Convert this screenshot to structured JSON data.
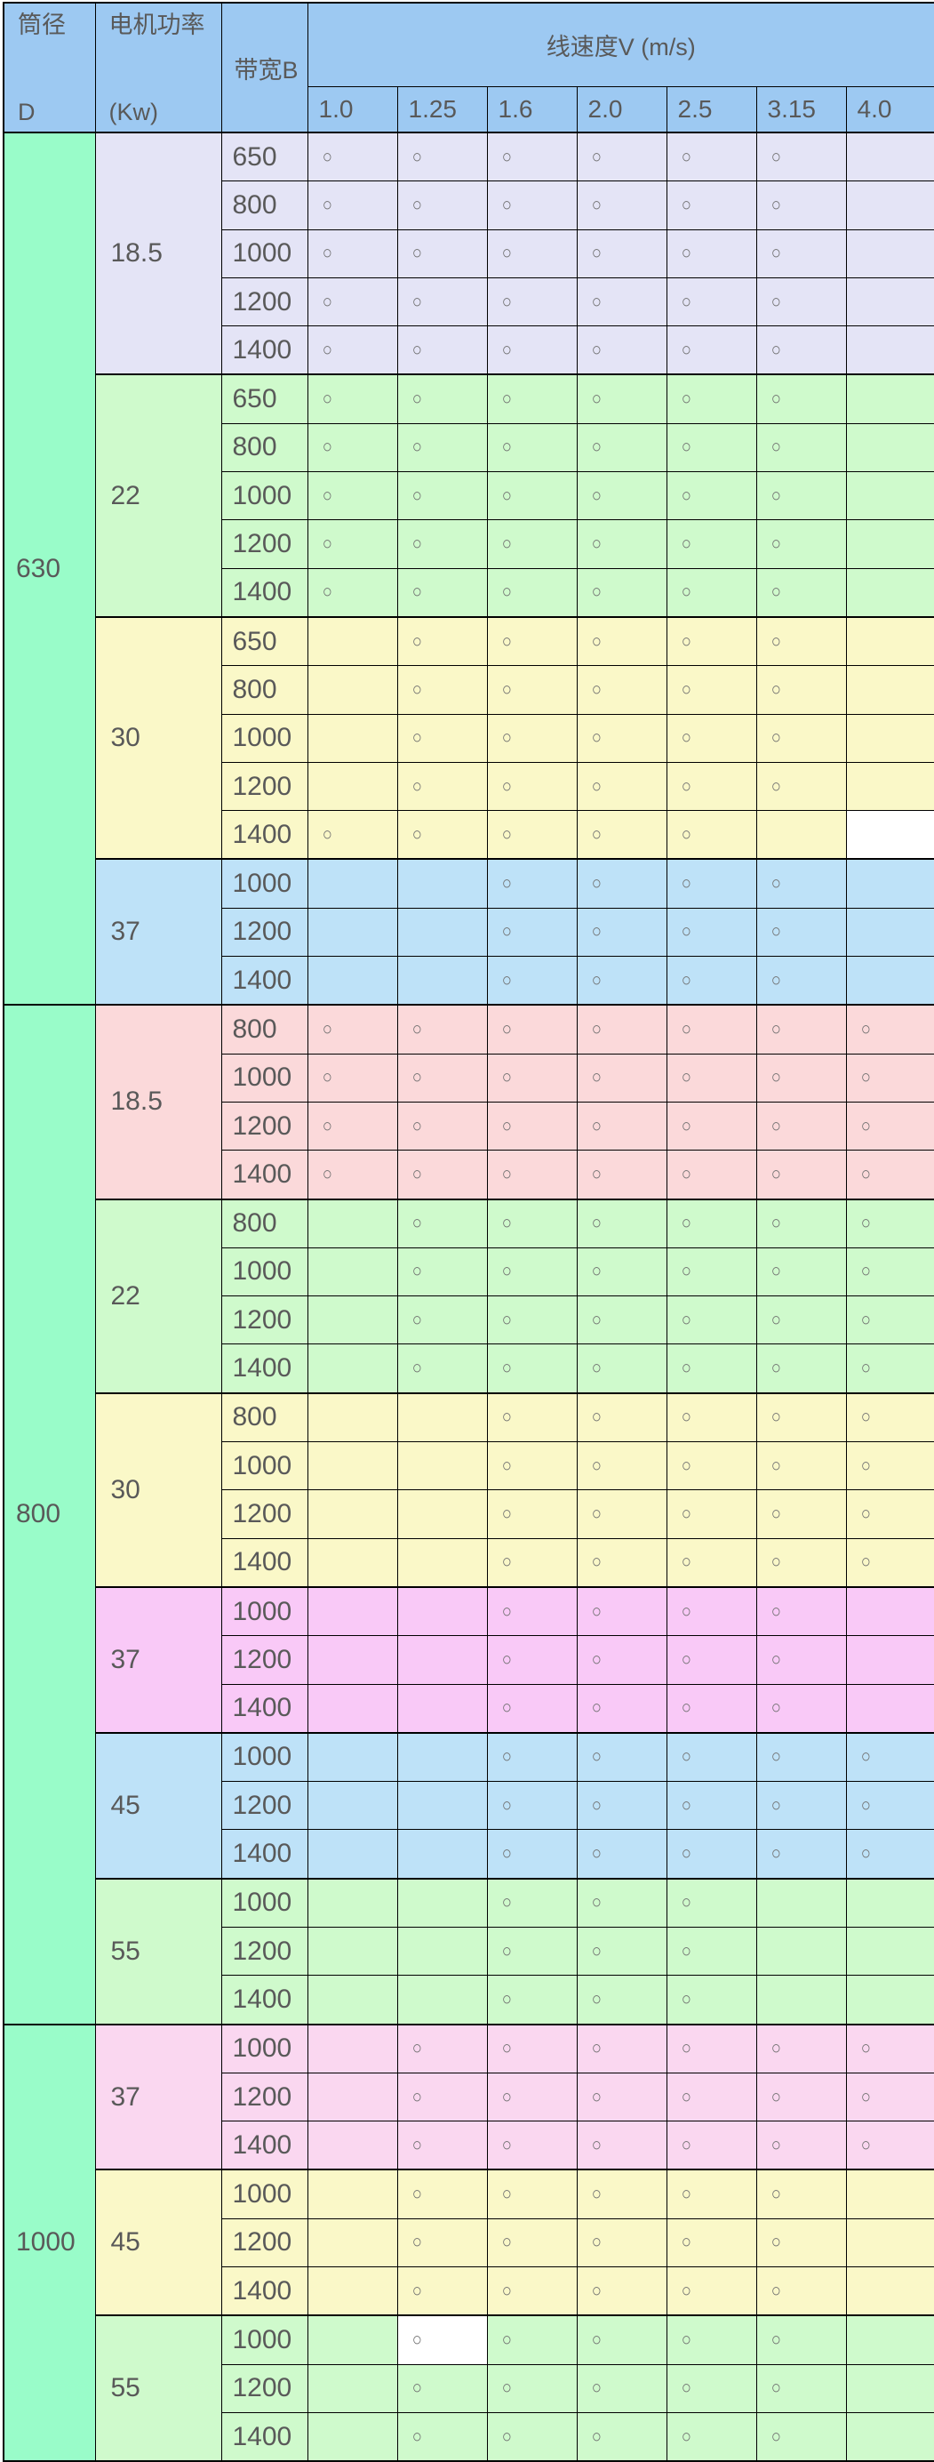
{
  "colors": {
    "header_blue": "#9DC9F2",
    "mint": "#99FCC9",
    "lavender": "#E4E4F6",
    "green": "#CFFACC",
    "yellow": "#FAF8C8",
    "blue": "#BEE2F8",
    "pink": "#FBD9DA",
    "magenta": "#F9C9F7",
    "pink2": "#FAD7F0",
    "white": "#FFFFFF",
    "border": "#000000",
    "text": "#595959"
  },
  "chart_data": {
    "type": "table",
    "header": {
      "diameter_label": "筒径",
      "diameter_sub": "D",
      "power_label": "电机功率",
      "power_sub": "(Kw)",
      "belt_width_label": "带宽B",
      "speed_title": "线速度V (m/s)",
      "speed_columns": [
        "1.0",
        "1.25",
        "1.6",
        "2.0",
        "2.5",
        "3.15",
        "4.0"
      ],
      "mark": "○"
    },
    "groups": [
      {
        "diameter": "630",
        "blocks": [
          {
            "power": "18.5",
            "theme": "lavender",
            "rows": [
              {
                "width": "650",
                "marks": [
                  1,
                  1,
                  1,
                  1,
                  1,
                  1,
                  0
                ]
              },
              {
                "width": "800",
                "marks": [
                  1,
                  1,
                  1,
                  1,
                  1,
                  1,
                  0
                ]
              },
              {
                "width": "1000",
                "marks": [
                  1,
                  1,
                  1,
                  1,
                  1,
                  1,
                  0
                ]
              },
              {
                "width": "1200",
                "marks": [
                  1,
                  1,
                  1,
                  1,
                  1,
                  1,
                  0
                ]
              },
              {
                "width": "1400",
                "marks": [
                  1,
                  1,
                  1,
                  1,
                  1,
                  1,
                  0
                ]
              }
            ]
          },
          {
            "power": "22",
            "theme": "green",
            "rows": [
              {
                "width": "650",
                "marks": [
                  1,
                  1,
                  1,
                  1,
                  1,
                  1,
                  0
                ]
              },
              {
                "width": "800",
                "marks": [
                  1,
                  1,
                  1,
                  1,
                  1,
                  1,
                  0
                ]
              },
              {
                "width": "1000",
                "marks": [
                  1,
                  1,
                  1,
                  1,
                  1,
                  1,
                  0
                ]
              },
              {
                "width": "1200",
                "marks": [
                  1,
                  1,
                  1,
                  1,
                  1,
                  1,
                  0
                ]
              },
              {
                "width": "1400",
                "marks": [
                  1,
                  1,
                  1,
                  1,
                  1,
                  1,
                  0
                ]
              }
            ]
          },
          {
            "power": "30",
            "theme": "yellow",
            "rows": [
              {
                "width": "650",
                "marks": [
                  0,
                  1,
                  1,
                  1,
                  1,
                  1,
                  0
                ]
              },
              {
                "width": "800",
                "marks": [
                  0,
                  1,
                  1,
                  1,
                  1,
                  1,
                  0
                ]
              },
              {
                "width": "1000",
                "marks": [
                  0,
                  1,
                  1,
                  1,
                  1,
                  1,
                  0
                ]
              },
              {
                "width": "1200",
                "marks": [
                  0,
                  1,
                  1,
                  1,
                  1,
                  1,
                  0
                ]
              },
              {
                "width": "1400",
                "marks": [
                  1,
                  1,
                  1,
                  1,
                  1,
                  0,
                  0
                ],
                "white_cells": [
                  6
                ]
              }
            ]
          },
          {
            "power": "37",
            "theme": "blue",
            "rows": [
              {
                "width": "1000",
                "marks": [
                  0,
                  0,
                  1,
                  1,
                  1,
                  1,
                  0
                ]
              },
              {
                "width": "1200",
                "marks": [
                  0,
                  0,
                  1,
                  1,
                  1,
                  1,
                  0
                ]
              },
              {
                "width": "1400",
                "marks": [
                  0,
                  0,
                  1,
                  1,
                  1,
                  1,
                  0
                ]
              }
            ]
          }
        ]
      },
      {
        "diameter": "800",
        "blocks": [
          {
            "power": "18.5",
            "theme": "pink",
            "rows": [
              {
                "width": "800",
                "marks": [
                  1,
                  1,
                  1,
                  1,
                  1,
                  1,
                  1
                ]
              },
              {
                "width": "1000",
                "marks": [
                  1,
                  1,
                  1,
                  1,
                  1,
                  1,
                  1
                ]
              },
              {
                "width": "1200",
                "marks": [
                  1,
                  1,
                  1,
                  1,
                  1,
                  1,
                  1
                ]
              },
              {
                "width": "1400",
                "marks": [
                  1,
                  1,
                  1,
                  1,
                  1,
                  1,
                  1
                ]
              }
            ]
          },
          {
            "power": "22",
            "theme": "green",
            "rows": [
              {
                "width": "800",
                "marks": [
                  0,
                  1,
                  1,
                  1,
                  1,
                  1,
                  1
                ]
              },
              {
                "width": "1000",
                "marks": [
                  0,
                  1,
                  1,
                  1,
                  1,
                  1,
                  1
                ]
              },
              {
                "width": "1200",
                "marks": [
                  0,
                  1,
                  1,
                  1,
                  1,
                  1,
                  1
                ]
              },
              {
                "width": "1400",
                "marks": [
                  0,
                  1,
                  1,
                  1,
                  1,
                  1,
                  1
                ]
              }
            ]
          },
          {
            "power": "30",
            "theme": "yellow",
            "rows": [
              {
                "width": "800",
                "marks": [
                  0,
                  0,
                  1,
                  1,
                  1,
                  1,
                  1
                ]
              },
              {
                "width": "1000",
                "marks": [
                  0,
                  0,
                  1,
                  1,
                  1,
                  1,
                  1
                ]
              },
              {
                "width": "1200",
                "marks": [
                  0,
                  0,
                  1,
                  1,
                  1,
                  1,
                  1
                ]
              },
              {
                "width": "1400",
                "marks": [
                  0,
                  0,
                  1,
                  1,
                  1,
                  1,
                  1
                ]
              }
            ]
          },
          {
            "power": "37",
            "theme": "magenta",
            "rows": [
              {
                "width": "1000",
                "marks": [
                  0,
                  0,
                  1,
                  1,
                  1,
                  1,
                  0
                ]
              },
              {
                "width": "1200",
                "marks": [
                  0,
                  0,
                  1,
                  1,
                  1,
                  1,
                  0
                ]
              },
              {
                "width": "1400",
                "marks": [
                  0,
                  0,
                  1,
                  1,
                  1,
                  1,
                  0
                ]
              }
            ]
          },
          {
            "power": "45",
            "theme": "blue",
            "rows": [
              {
                "width": "1000",
                "marks": [
                  0,
                  0,
                  1,
                  1,
                  1,
                  1,
                  1
                ]
              },
              {
                "width": "1200",
                "marks": [
                  0,
                  0,
                  1,
                  1,
                  1,
                  1,
                  1
                ]
              },
              {
                "width": "1400",
                "marks": [
                  0,
                  0,
                  1,
                  1,
                  1,
                  1,
                  1
                ]
              }
            ]
          },
          {
            "power": "55",
            "theme": "green",
            "rows": [
              {
                "width": "1000",
                "marks": [
                  0,
                  0,
                  1,
                  1,
                  1,
                  0,
                  0
                ]
              },
              {
                "width": "1200",
                "marks": [
                  0,
                  0,
                  1,
                  1,
                  1,
                  0,
                  0
                ]
              },
              {
                "width": "1400",
                "marks": [
                  0,
                  0,
                  1,
                  1,
                  1,
                  0,
                  0
                ]
              }
            ]
          }
        ]
      },
      {
        "diameter": "1000",
        "blocks": [
          {
            "power": "37",
            "theme": "pink2",
            "rows": [
              {
                "width": "1000",
                "marks": [
                  0,
                  1,
                  1,
                  1,
                  1,
                  1,
                  1
                ]
              },
              {
                "width": "1200",
                "marks": [
                  0,
                  1,
                  1,
                  1,
                  1,
                  1,
                  1
                ]
              },
              {
                "width": "1400",
                "marks": [
                  0,
                  1,
                  1,
                  1,
                  1,
                  1,
                  1
                ]
              }
            ]
          },
          {
            "power": "45",
            "theme": "yellow",
            "rows": [
              {
                "width": "1000",
                "marks": [
                  0,
                  1,
                  1,
                  1,
                  1,
                  1,
                  0
                ]
              },
              {
                "width": "1200",
                "marks": [
                  0,
                  1,
                  1,
                  1,
                  1,
                  1,
                  0
                ]
              },
              {
                "width": "1400",
                "marks": [
                  0,
                  1,
                  1,
                  1,
                  1,
                  1,
                  0
                ]
              }
            ]
          },
          {
            "power": "55",
            "theme": "green",
            "rows": [
              {
                "width": "1000",
                "marks": [
                  0,
                  1,
                  1,
                  1,
                  1,
                  1,
                  0
                ],
                "white_cells": [
                  1
                ]
              },
              {
                "width": "1200",
                "marks": [
                  0,
                  1,
                  1,
                  1,
                  1,
                  1,
                  0
                ]
              },
              {
                "width": "1400",
                "marks": [
                  0,
                  1,
                  1,
                  1,
                  1,
                  1,
                  0
                ]
              }
            ]
          }
        ]
      }
    ]
  }
}
